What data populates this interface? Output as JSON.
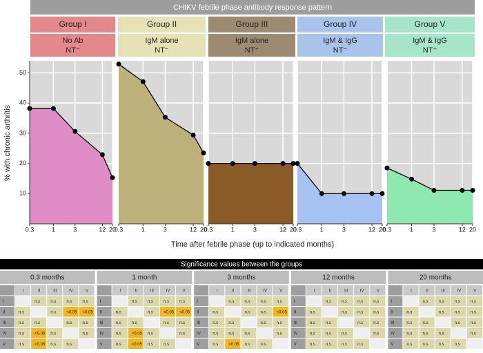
{
  "header": "CHIKV febrile phase antibody response pattern",
  "ylabel": "% with chronic arthritis",
  "xlabel": "Time after febrile phase (up to indicated months)",
  "chart_data": [
    {
      "type": "area",
      "title": "Group I",
      "subtitle": [
        "No Ab",
        "NT⁻"
      ],
      "header_color": "#e3898c",
      "color": "#e08cc6",
      "x": [
        0.3,
        1,
        3,
        12,
        20
      ],
      "values": [
        38.2,
        38.2,
        30.6,
        22.9,
        15.3
      ],
      "xlim": [
        0.3,
        20
      ],
      "ylim": [
        0,
        54
      ],
      "xticks": [
        0.3,
        1,
        3,
        12,
        20
      ],
      "yticks": [
        10,
        20,
        30,
        40,
        50
      ],
      "log_x": true,
      "grid": true
    },
    {
      "type": "area",
      "title": "Group II",
      "subtitle": [
        "IgM alone",
        "NT⁻"
      ],
      "header_color": "#e6e2b6",
      "color": "#bcb17b",
      "x": [
        0.3,
        1,
        3,
        12,
        20
      ],
      "values": [
        52.9,
        47.1,
        35.3,
        29.4,
        23.5
      ],
      "xlim": [
        0.3,
        20
      ],
      "ylim": [
        0,
        54
      ],
      "xticks": [
        0.3,
        1,
        3,
        12,
        20
      ],
      "yticks": [
        10,
        20,
        30,
        40,
        50
      ],
      "log_x": true,
      "grid": true
    },
    {
      "type": "area",
      "title": "Group III",
      "subtitle": [
        "IgM alone",
        "NT⁺"
      ],
      "header_color": "#9c8b72",
      "color": "#8a5a27",
      "x": [
        0.3,
        1,
        3,
        12,
        20
      ],
      "values": [
        20,
        20,
        20,
        20,
        20
      ],
      "xlim": [
        0.3,
        20
      ],
      "ylim": [
        0,
        54
      ],
      "xticks": [
        0.3,
        1,
        3,
        12,
        20
      ],
      "yticks": [
        10,
        20,
        30,
        40,
        50
      ],
      "log_x": true,
      "grid": true
    },
    {
      "type": "area",
      "title": "Group IV",
      "subtitle": [
        "IgM & IgG",
        "NT⁻"
      ],
      "header_color": "#a9c3ea",
      "color": "#a6c3f3",
      "x": [
        0.3,
        1,
        3,
        12,
        20
      ],
      "values": [
        20,
        10,
        10,
        10,
        10
      ],
      "xlim": [
        0.3,
        20
      ],
      "ylim": [
        0,
        54
      ],
      "xticks": [
        0.3,
        1,
        3,
        12,
        20
      ],
      "yticks": [
        10,
        20,
        30,
        40,
        50
      ],
      "log_x": true,
      "grid": true
    },
    {
      "type": "area",
      "title": "Group V",
      "subtitle": [
        "IgM & IgG",
        "NT⁺"
      ],
      "header_color": "#a7e5c8",
      "color": "#8fe8af",
      "x": [
        0.3,
        1,
        3,
        12,
        20
      ],
      "values": [
        18.5,
        14.8,
        11.1,
        11.1,
        11.1
      ],
      "xlim": [
        0.3,
        20
      ],
      "ylim": [
        0,
        54
      ],
      "xticks": [
        0.3,
        1,
        3,
        12,
        20
      ],
      "yticks": [
        10,
        20,
        30,
        40,
        50
      ],
      "log_x": true,
      "grid": true
    }
  ],
  "tables": {
    "title": "Significance values between the groups",
    "highlight_color": "#f2b624",
    "items": [
      {
        "title": "0.3 months",
        "columns": [
          "I",
          "II",
          "III",
          "IV",
          "V"
        ],
        "rows": [
          {
            "label": "I",
            "cells": [
              null,
              "n.s",
              "n.s",
              "n.s",
              "n.s"
            ]
          },
          {
            "label": "II",
            "cells": [
              "n.s",
              null,
              "n.s",
              "<0.05",
              "<0.05"
            ]
          },
          {
            "label": "III",
            "cells": [
              "n.s",
              "n.s",
              null,
              "n.s",
              "n.s"
            ]
          },
          {
            "label": "IV",
            "cells": [
              "n.s",
              "<0.05",
              "n.s",
              null,
              "n.s"
            ]
          },
          {
            "label": "V",
            "cells": [
              "n.s",
              "<0.05",
              "n.s",
              "n.s",
              null
            ]
          }
        ]
      },
      {
        "title": "1 month",
        "columns": [
          "I",
          "II",
          "III",
          "IV",
          "V"
        ],
        "rows": [
          {
            "label": "I",
            "cells": [
              null,
              "n.s",
              "n.s",
              "n.s",
              "n.s"
            ]
          },
          {
            "label": "II",
            "cells": [
              "n.s",
              null,
              "n.s",
              "<0.05",
              "<0.05"
            ]
          },
          {
            "label": "III",
            "cells": [
              "n.s",
              "n.s",
              null,
              "n.s",
              "n.s"
            ]
          },
          {
            "label": "IV",
            "cells": [
              "n.s",
              "<0.05",
              "n.s",
              null,
              "n.s"
            ]
          },
          {
            "label": "V",
            "cells": [
              "n.s",
              "<0.05",
              "n.s",
              "n.s",
              null
            ]
          }
        ]
      },
      {
        "title": "3 months",
        "columns": [
          "I",
          "II",
          "III",
          "IV",
          "V"
        ],
        "rows": [
          {
            "label": "I",
            "cells": [
              null,
              "n.s",
              "n.s",
              "n.s",
              "n.s"
            ]
          },
          {
            "label": "II",
            "cells": [
              "n.s",
              null,
              "n.s",
              "n.s",
              "<0.05"
            ]
          },
          {
            "label": "III",
            "cells": [
              "n.s",
              "n.s",
              null,
              "n.s",
              "n.s"
            ]
          },
          {
            "label": "IV",
            "cells": [
              "n.s",
              "n.s",
              "n.s",
              null,
              "n.s"
            ]
          },
          {
            "label": "V",
            "cells": [
              "n.s",
              "<0.05",
              "n.s",
              "n.s",
              null
            ]
          }
        ]
      },
      {
        "title": "12 months",
        "columns": [
          "I",
          "II",
          "III",
          "IV",
          "V"
        ],
        "rows": [
          {
            "label": "I",
            "cells": [
              null,
              "n.s",
              "n.s",
              "n.s",
              "n.s"
            ]
          },
          {
            "label": "II",
            "cells": [
              "n.s",
              null,
              "n.s",
              "n.s",
              "n.s"
            ]
          },
          {
            "label": "III",
            "cells": [
              "n.s",
              "n.s",
              null,
              "n.s",
              "n.s"
            ]
          },
          {
            "label": "IV",
            "cells": [
              "n.s",
              "n.s",
              "n.s",
              null,
              "n.s"
            ]
          },
          {
            "label": "V",
            "cells": [
              "n.s",
              "n.s",
              "n.s",
              "n.s",
              null
            ]
          }
        ]
      },
      {
        "title": "20 months",
        "columns": [
          "I",
          "II",
          "III",
          "IV",
          "V"
        ],
        "rows": [
          {
            "label": "I",
            "cells": [
              null,
              "n.s",
              "n.s",
              "n.s",
              "n.s"
            ]
          },
          {
            "label": "II",
            "cells": [
              "n.s",
              null,
              "n.s",
              "n.s",
              "n.s"
            ]
          },
          {
            "label": "III",
            "cells": [
              "n.s",
              "n.s",
              null,
              "n.s",
              "n.s"
            ]
          },
          {
            "label": "IV",
            "cells": [
              "n.s",
              "n.s",
              "n.s",
              null,
              "n.s"
            ]
          },
          {
            "label": "V",
            "cells": [
              "n.s",
              "n.s",
              "n.s",
              "n.s",
              null
            ]
          }
        ]
      }
    ]
  }
}
